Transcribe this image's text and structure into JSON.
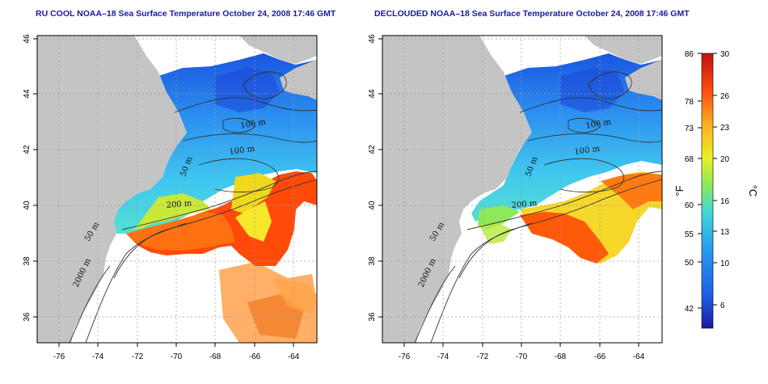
{
  "panels": [
    {
      "title": "RU COOL NOAA–18 Sea Surface Temperature October 24, 2008 17:46 GMT",
      "lon_ticks": [
        "-76",
        "-74",
        "-72",
        "-70",
        "-68",
        "-66",
        "-64"
      ],
      "lat_ticks": [
        "46",
        "44",
        "42",
        "40",
        "38",
        "36"
      ],
      "contour_labels": [
        "100 m",
        "100 m",
        "50 m",
        "200 m",
        "50 m",
        "2000 m"
      ]
    },
    {
      "title": "DECLOUDED NOAA–18 Sea Surface Temperature October 24, 2008 17:46 GMT",
      "lon_ticks": [
        "-76",
        "-74",
        "-72",
        "-70",
        "-68",
        "-66",
        "-64"
      ],
      "lat_ticks": [
        "46",
        "44",
        "42",
        "40",
        "38",
        "36"
      ],
      "contour_labels": [
        "100 m",
        "100 m",
        "50 m",
        "200 m",
        "50 m",
        "2000 m"
      ]
    }
  ],
  "colorbar": {
    "fahrenheit_ticks": [
      "86",
      "78",
      "73",
      "68",
      "60",
      "55",
      "50",
      "42"
    ],
    "celsius_ticks": [
      "30",
      "26",
      "23",
      "20",
      "16",
      "13",
      "10",
      "6"
    ],
    "fahrenheit_unit": "°F",
    "celsius_unit": "°C",
    "colors": [
      "#1a1aa0",
      "#1e5ee8",
      "#2aa0f0",
      "#3cd8d8",
      "#8ee85a",
      "#e8f020",
      "#ffb020",
      "#ff5010",
      "#c01010"
    ]
  },
  "colors": {
    "land": "#c4c4c4",
    "grid": "#9a9a9a",
    "contour": "#333333"
  }
}
